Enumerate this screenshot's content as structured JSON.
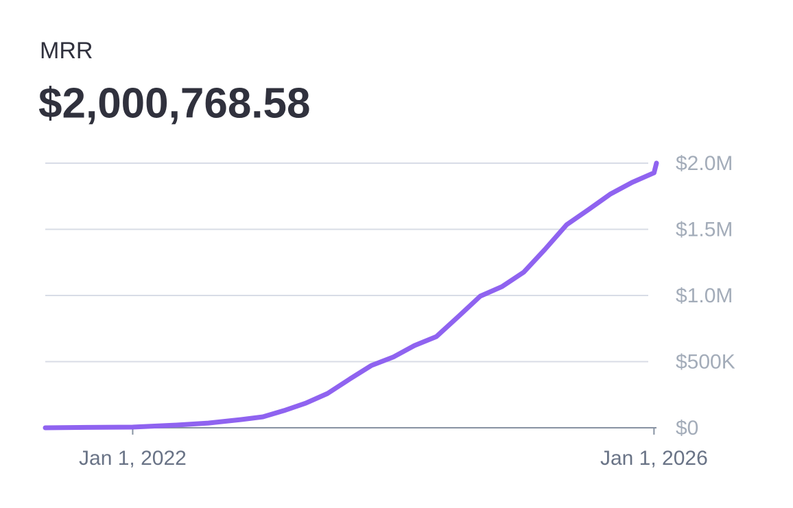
{
  "chart_data": {
    "type": "line",
    "title": "MRR",
    "subtitle": "$2,000,768.58",
    "x": [
      "2021-05-01",
      "2021-09-01",
      "2022-01-01",
      "2022-05-01",
      "2022-08-01",
      "2022-11-01",
      "2023-01-01",
      "2023-03-01",
      "2023-05-01",
      "2023-07-01",
      "2023-09-01",
      "2023-11-01",
      "2024-01-01",
      "2024-03-01",
      "2024-05-01",
      "2024-07-01",
      "2024-09-01",
      "2024-11-01",
      "2025-01-01",
      "2025-03-01",
      "2025-05-01",
      "2025-07-01",
      "2025-09-01",
      "2025-11-01",
      "2026-01-01",
      "2026-01-08"
    ],
    "values": [
      0,
      3000,
      5000,
      20000,
      36000,
      62000,
      83000,
      130000,
      186000,
      259000,
      368000,
      471000,
      534000,
      622000,
      689000,
      839000,
      995000,
      1067000,
      1176000,
      1347000,
      1534000,
      1648000,
      1767000,
      1855000,
      1927000,
      2000768.58
    ],
    "color": "#8f63f0",
    "xlim": [
      "2021-05-01",
      "2026-01-08"
    ],
    "xticks": [
      {
        "value": "2022-01-01",
        "label": "Jan 1, 2022"
      },
      {
        "value": "2026-01-01",
        "label": "Jan 1, 2026"
      }
    ],
    "ylim": [
      0,
      2000000
    ],
    "yticks": [
      {
        "value": 0,
        "label": "$0"
      },
      {
        "value": 500000,
        "label": "$500K"
      },
      {
        "value": 1000000,
        "label": "$1.0M"
      },
      {
        "value": 1500000,
        "label": "$1.5M"
      },
      {
        "value": 2000000,
        "label": "$2.0M"
      }
    ],
    "grid": true
  }
}
